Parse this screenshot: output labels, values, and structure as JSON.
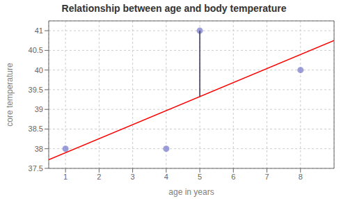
{
  "chart_data": {
    "type": "scatter",
    "title": "Relationship between age and body temperature",
    "x_label": "age in years",
    "y_label": "core temperature",
    "series": [
      {
        "type": "scatter",
        "color": "#7b7fcd",
        "x": [
          1,
          4,
          5,
          8
        ],
        "values": [
          38,
          38,
          41,
          40
        ]
      },
      {
        "type": "line",
        "color": "red",
        "x": [
          0.5,
          9.0
        ],
        "values": [
          37.7185,
          40.753
        ]
      },
      {
        "type": "line",
        "color": "#333355",
        "x": [
          5,
          5
        ],
        "values": [
          39.325,
          41
        ]
      }
    ],
    "xlim": [
      0.5,
      9.0
    ],
    "ylim": [
      37.5,
      41.25
    ],
    "xticks": [
      1,
      2,
      3,
      4,
      5,
      6,
      7,
      8
    ],
    "yticks": [
      37.5,
      38,
      38.5,
      39,
      39.5,
      40,
      40.5,
      41
    ],
    "grid": true
  }
}
